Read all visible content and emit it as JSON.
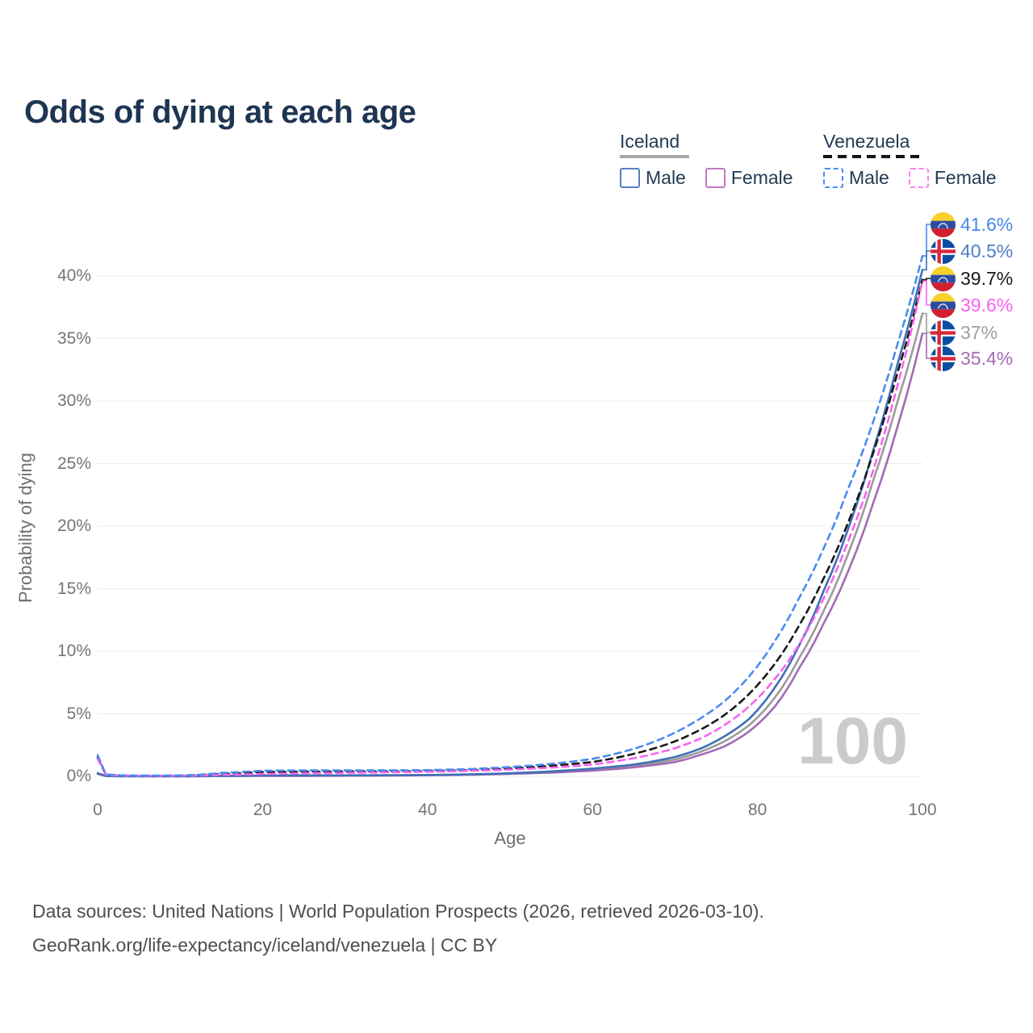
{
  "title": "Odds of dying at each age",
  "watermark": "100",
  "legend": {
    "groups": [
      {
        "id": "iceland",
        "label": "Iceland",
        "line_style": "solid",
        "line_color": "#a9a9a9",
        "items": [
          {
            "label": "Male",
            "color": "#5580c2",
            "box_style": "solid",
            "checked": false
          },
          {
            "label": "Female",
            "color": "#c278bd",
            "box_style": "solid",
            "checked": false
          }
        ]
      },
      {
        "id": "venezuela",
        "label": "Venezuela",
        "line_style": "dashed",
        "line_color": "#151515",
        "items": [
          {
            "label": "Male",
            "color": "#4b8bf4",
            "box_style": "dashed",
            "checked": false
          },
          {
            "label": "Female",
            "color": "#fb7df3",
            "box_style": "dashed",
            "checked": false
          }
        ]
      }
    ]
  },
  "footer": {
    "line1": "Data sources: United Nations | World Population Prospects (2026, retrieved 2026-03-10).",
    "line2": "GeoRank.org/life-expectancy/iceland/venezuela | CC BY"
  },
  "chart_data": {
    "type": "line",
    "title": "Odds of dying at each age",
    "xlabel": "Age",
    "ylabel": "Probability of dying",
    "xlim": [
      0,
      100
    ],
    "ylim_pct": [
      0,
      43
    ],
    "x_ticks": [
      0,
      20,
      40,
      60,
      80,
      100
    ],
    "y_ticks_pct": [
      0,
      5,
      10,
      15,
      20,
      25,
      30,
      35,
      40
    ],
    "y_tick_labels": [
      "0%",
      "5%",
      "10%",
      "15%",
      "20%",
      "25%",
      "30%",
      "35%",
      "40%"
    ],
    "grid": "horizontal",
    "legend_position": "top-right",
    "current_age_frame": "100",
    "ages": [
      0,
      1,
      3,
      5,
      10,
      15,
      20,
      25,
      30,
      35,
      40,
      45,
      50,
      55,
      60,
      65,
      70,
      73,
      76,
      79,
      82,
      85,
      88,
      91,
      94,
      97,
      100
    ],
    "series": [
      {
        "id": "iceland_both",
        "name": "Iceland (both sexes)",
        "country": "Iceland",
        "sex": "both",
        "style": "solid",
        "color": "#9b9b9b",
        "label_color": "#9e9e9e",
        "flag": "iceland",
        "end_label": "37%",
        "values_pct": [
          0.22,
          0.028,
          0.013,
          0.01,
          0.01,
          0.03,
          0.05,
          0.06,
          0.06,
          0.075,
          0.1,
          0.15,
          0.22,
          0.35,
          0.54,
          0.84,
          1.35,
          1.95,
          2.8,
          4.1,
          6.2,
          9.4,
          13.2,
          17.8,
          23.6,
          30.0,
          37.0
        ]
      },
      {
        "id": "iceland_female",
        "name": "Iceland Female",
        "country": "Iceland",
        "sex": "female",
        "style": "solid",
        "color": "#a26bb2",
        "label_color": "#a56cb4",
        "flag": "iceland",
        "end_label": "35.4%",
        "values_pct": [
          0.2,
          0.025,
          0.01,
          0.008,
          0.008,
          0.02,
          0.032,
          0.04,
          0.05,
          0.06,
          0.09,
          0.13,
          0.2,
          0.3,
          0.46,
          0.72,
          1.15,
          1.7,
          2.4,
          3.6,
          5.5,
          8.6,
          12.2,
          16.4,
          21.8,
          28.0,
          35.4
        ]
      },
      {
        "id": "iceland_male",
        "name": "Iceland Male",
        "country": "Iceland",
        "sex": "male",
        "style": "solid",
        "color": "#3e70b6",
        "label_color": "#4d7ecb",
        "flag": "iceland",
        "end_label": "40.5%",
        "values_pct": [
          0.25,
          0.03,
          0.015,
          0.012,
          0.012,
          0.04,
          0.07,
          0.08,
          0.08,
          0.09,
          0.11,
          0.16,
          0.25,
          0.4,
          0.62,
          0.95,
          1.55,
          2.2,
          3.2,
          4.6,
          7.0,
          10.4,
          14.8,
          19.8,
          26.0,
          33.0,
          40.5
        ]
      },
      {
        "id": "venezuela_both",
        "name": "Venezuela (both sexes)",
        "country": "Venezuela",
        "sex": "both",
        "style": "dashed",
        "color": "#191919",
        "label_color": "#191919",
        "flag": "venezuela",
        "end_label": "39.7%",
        "values_pct": [
          1.5,
          0.13,
          0.07,
          0.05,
          0.06,
          0.2,
          0.35,
          0.38,
          0.4,
          0.4,
          0.43,
          0.5,
          0.63,
          0.85,
          1.15,
          1.8,
          2.8,
          3.7,
          4.9,
          6.6,
          8.9,
          12.0,
          15.8,
          20.3,
          25.8,
          32.3,
          39.7
        ]
      },
      {
        "id": "venezuela_female",
        "name": "Venezuela Female",
        "country": "Venezuela",
        "sex": "female",
        "style": "dashed",
        "color": "#f863ef",
        "label_color": "#fa5ff0",
        "flag": "venezuela",
        "end_label": "39.6%",
        "values_pct": [
          1.4,
          0.12,
          0.06,
          0.045,
          0.05,
          0.12,
          0.2,
          0.25,
          0.28,
          0.32,
          0.37,
          0.44,
          0.54,
          0.7,
          0.95,
          1.45,
          2.25,
          3.0,
          4.1,
          5.6,
          7.7,
          10.5,
          14.2,
          18.8,
          24.4,
          31.3,
          39.6
        ]
      },
      {
        "id": "venezuela_male",
        "name": "Venezuela Male",
        "country": "Venezuela",
        "sex": "male",
        "style": "dashed",
        "color": "#4a8cf0",
        "label_color": "#4687ec",
        "flag": "venezuela",
        "end_label": "41.6%",
        "values_pct": [
          1.7,
          0.15,
          0.08,
          0.06,
          0.07,
          0.28,
          0.45,
          0.48,
          0.48,
          0.48,
          0.5,
          0.58,
          0.75,
          1.0,
          1.4,
          2.2,
          3.5,
          4.6,
          6.0,
          8.0,
          10.7,
          14.2,
          18.2,
          23.0,
          28.3,
          34.6,
          41.6
        ]
      }
    ]
  }
}
